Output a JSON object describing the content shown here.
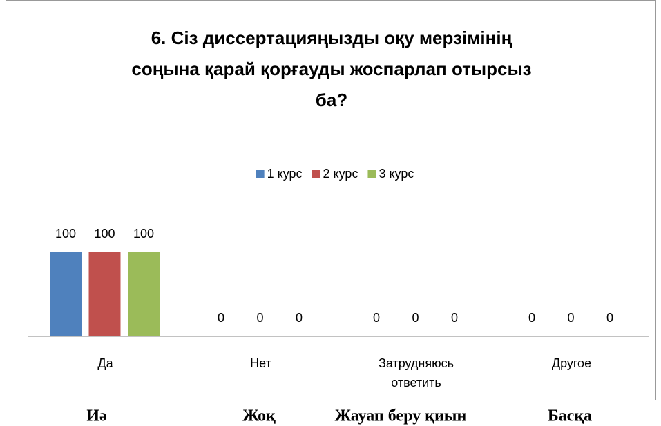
{
  "chart_data": {
    "type": "bar",
    "title": [
      "6. Сіз диссертацияңызды оқу мерзімінің",
      "соңына қарай қорғауды жоспарлап отырсыз",
      "ба?"
    ],
    "categories": [
      "Да",
      "Нет",
      "Затрудняюсь ответить",
      "Другое"
    ],
    "series": [
      {
        "name": "1 курс",
        "color": "#4f81bd",
        "values": [
          100,
          0,
          0,
          0
        ]
      },
      {
        "name": "2 курс",
        "color": "#c0504d",
        "values": [
          100,
          0,
          0,
          0
        ]
      },
      {
        "name": "3 курс",
        "color": "#9bbb59",
        "values": [
          100,
          0,
          0,
          0
        ]
      }
    ],
    "legend": "top"
  },
  "footer_labels": [
    "Иә",
    "Жоқ",
    "Жауап беру қиын",
    "Басқа"
  ]
}
